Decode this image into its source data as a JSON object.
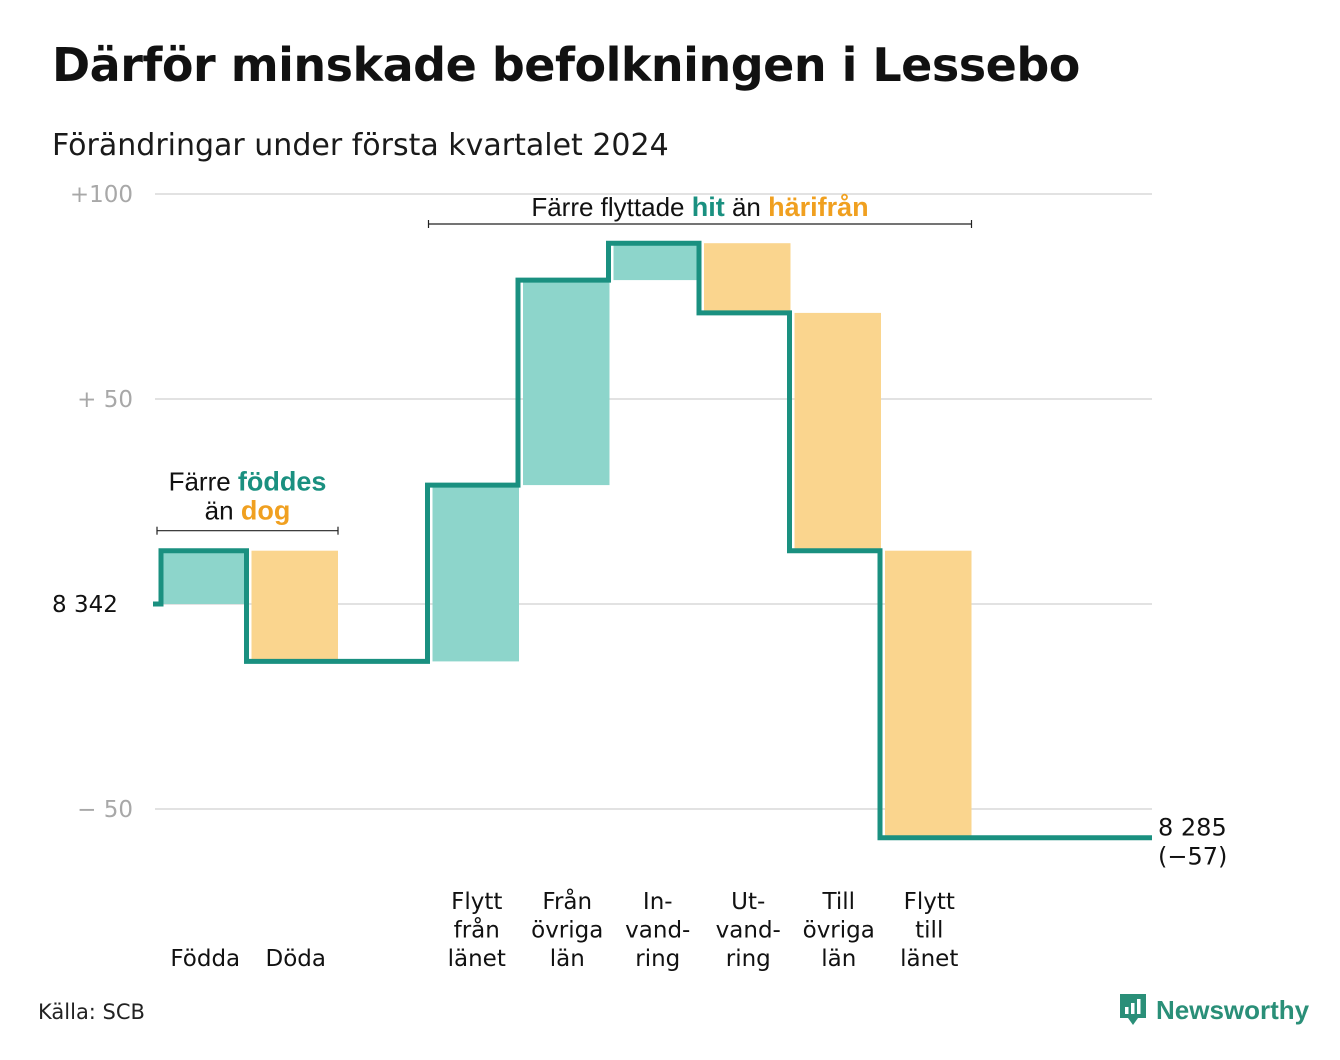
{
  "title": "Därför minskade befolkningen i Lessebo",
  "subtitle": "Förändringar under första kvartalet 2024",
  "source": "Källa: SCB",
  "brand": {
    "name": "Newsworthy",
    "icon": "newsworthy-logo-icon"
  },
  "colors": {
    "line": "#1a9080",
    "increase": "#8dd5cb",
    "decrease": "#fad58e",
    "hit": "#1a9080",
    "dog": "#f0a020",
    "grid": "#e2e2e2",
    "tick": "#a8a8a8"
  },
  "chart_data": {
    "type": "waterfall",
    "title": "Därför minskade befolkningen i Lessebo",
    "subtitle": "Förändringar under första kvartalet 2024",
    "start_value": 8342,
    "start_label": "8 342",
    "end_value": 8285,
    "end_label": "8 285",
    "end_change_label": "(−57)",
    "ylim": [
      -57,
      100
    ],
    "y_ticks": [
      {
        "value": 100,
        "label": "+100"
      },
      {
        "value": 50,
        "label": "+  50"
      },
      {
        "value": 0,
        "label": "8  342"
      },
      {
        "value": -50,
        "label": "−  50"
      }
    ],
    "grid": true,
    "categories": [
      {
        "label": [
          "Födda"
        ],
        "change": 13
      },
      {
        "label": [
          "Döda"
        ],
        "change": -27
      },
      {
        "label": [],
        "change": 0
      },
      {
        "label": [
          "Flytt",
          "från",
          "länet"
        ],
        "change": 43
      },
      {
        "label": [
          "Från",
          "övriga",
          "län"
        ],
        "change": 50
      },
      {
        "label": [
          "In-",
          "vand-",
          "ring"
        ],
        "change": 9
      },
      {
        "label": [
          "Ut-",
          "vand-",
          "ring"
        ],
        "change": -17
      },
      {
        "label": [
          "Till",
          "övriga",
          "län"
        ],
        "change": -58
      },
      {
        "label": [
          "Flytt",
          "till",
          "länet"
        ],
        "change": -70
      },
      {
        "label": [],
        "change": 0
      }
    ],
    "annotations": [
      {
        "parts": [
          {
            "text": "Färre "
          },
          {
            "text": "föddes",
            "color": "hit"
          }
        ],
        "parts2": [
          {
            "text": "än "
          },
          {
            "text": "dog",
            "color": "dog"
          }
        ],
        "span": [
          0,
          1
        ]
      },
      {
        "parts": [
          {
            "text": "Färre flyttade "
          },
          {
            "text": "hit",
            "color": "hit"
          },
          {
            "text": "  än "
          },
          {
            "text": "härifrån",
            "color": "dog"
          }
        ],
        "span": [
          3,
          8
        ]
      }
    ]
  }
}
